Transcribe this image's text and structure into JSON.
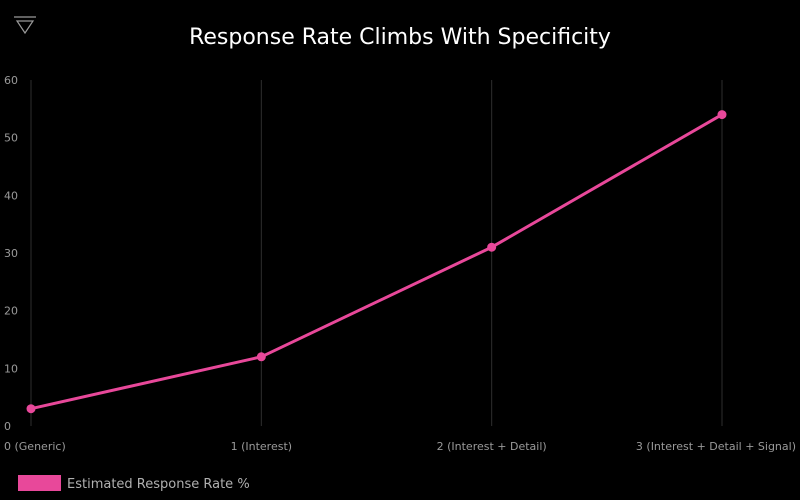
{
  "logo_icon": "triangle-with-bar-icon",
  "chart_data": {
    "type": "line",
    "title": "Response Rate Climbs With Specificity",
    "categories": [
      "0 (Generic)",
      "1 (Interest)",
      "2 (Interest + Detail)",
      "3 (Interest + Detail + Signal)"
    ],
    "series": [
      {
        "name": "Estimated Response Rate %",
        "values": [
          3,
          12,
          31,
          54
        ],
        "color": "#e8489a"
      }
    ],
    "ylim": [
      0,
      60
    ],
    "yticks": [
      "0",
      "10",
      "20",
      "30",
      "40",
      "50",
      "60"
    ],
    "grid": "vertical",
    "legend": "bottom-left",
    "background": "#000000"
  }
}
